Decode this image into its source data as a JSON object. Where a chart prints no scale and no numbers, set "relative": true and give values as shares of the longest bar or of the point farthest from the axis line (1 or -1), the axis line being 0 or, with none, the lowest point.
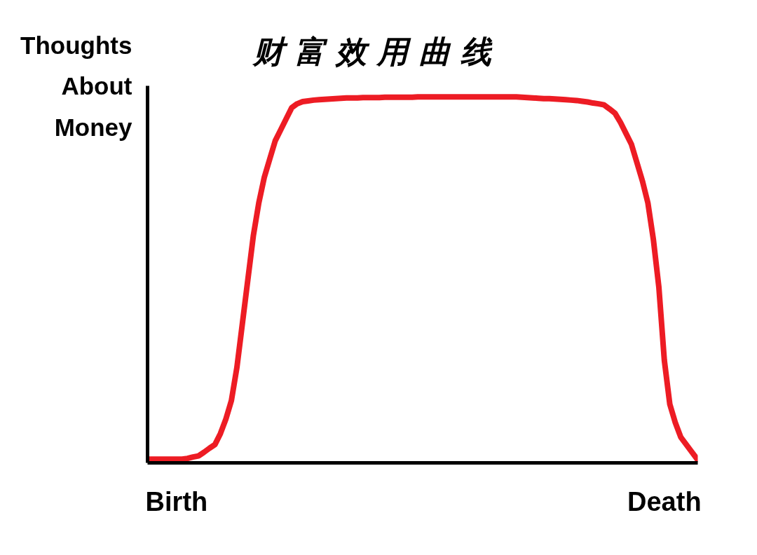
{
  "chart_data": {
    "type": "line",
    "title": "财 富 效 用 曲 线",
    "ylabel": "Thoughts About Money",
    "relative": true,
    "line_style": "solid",
    "categories": [
      null,
      null,
      null,
      null,
      null,
      "Birth",
      null,
      null,
      null,
      null,
      null,
      null,
      null,
      null,
      null,
      null,
      null,
      null,
      null,
      null,
      null,
      null,
      null,
      null,
      null,
      null,
      null,
      null,
      null,
      null,
      null,
      null,
      null,
      null,
      null,
      null,
      null,
      null,
      null,
      null,
      null,
      null,
      null,
      null,
      null,
      null,
      null,
      null,
      null,
      null,
      null,
      null,
      null,
      null,
      null,
      null,
      null,
      null,
      null,
      null,
      null,
      null,
      null,
      null,
      null,
      null,
      null,
      null,
      null,
      null,
      null,
      null,
      null,
      null,
      null,
      null,
      null,
      null,
      null,
      null,
      null,
      null,
      null,
      null,
      null,
      null,
      null,
      null,
      null,
      null,
      null,
      null,
      null,
      null,
      "Death",
      null,
      null,
      null,
      null,
      null,
      null
    ],
    "series": [
      {
        "color": "#ed1c24",
        "values": [
          0.01,
          0.01,
          0.01,
          0.01,
          0.01,
          0.01,
          0.01,
          0.012,
          0.016,
          0.019,
          0.029,
          0.04,
          0.05,
          0.08,
          0.12,
          0.17,
          0.26,
          0.38,
          0.5,
          0.62,
          0.71,
          0.78,
          0.83,
          0.88,
          0.91,
          0.94,
          0.97,
          0.981,
          0.987,
          0.989,
          0.991,
          0.992,
          0.993,
          0.994,
          0.995,
          0.996,
          0.997,
          0.997,
          0.997,
          0.998,
          0.998,
          0.998,
          0.998,
          0.999,
          0.999,
          0.999,
          0.999,
          0.999,
          0.999,
          1.0,
          1.0,
          1.0,
          1.0,
          1.0,
          1.0,
          1.0,
          1.0,
          1.0,
          1.0,
          1.0,
          1.0,
          1.0,
          1.0,
          1.0,
          1.0,
          1.0,
          1.0,
          1.0,
          0.999,
          0.998,
          0.997,
          0.996,
          0.995,
          0.995,
          0.994,
          0.993,
          0.992,
          0.991,
          0.99,
          0.988,
          0.986,
          0.983,
          0.981,
          0.978,
          0.967,
          0.955,
          0.93,
          0.9,
          0.87,
          0.82,
          0.77,
          0.71,
          0.61,
          0.48,
          0.28,
          0.16,
          0.11,
          0.07,
          0.05,
          0.03,
          0.01
        ]
      }
    ]
  }
}
